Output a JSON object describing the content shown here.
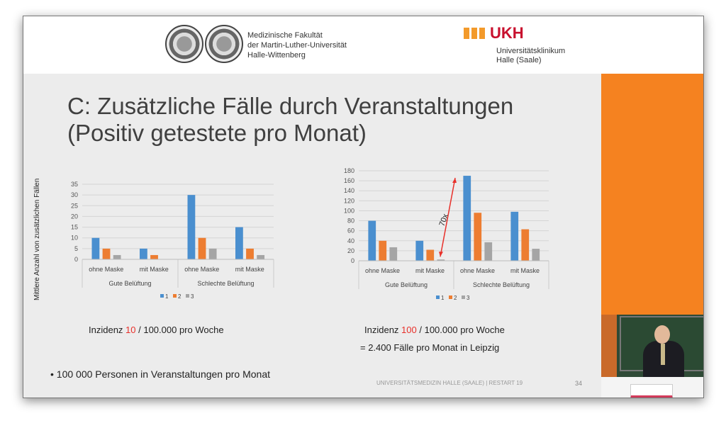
{
  "header": {
    "faculty_lines": [
      "Medizinische Fakultät",
      "der Martin-Luther-Universität",
      "Halle-Wittenberg"
    ],
    "ukh_logo": "UKH",
    "ukh_sub": [
      "Universitätsklinikum",
      "Halle (Saale)"
    ]
  },
  "slide": {
    "title_line1": "C: Zusätzliche Fälle durch Veranstaltungen",
    "title_line2": "(Positiv getestete pro Monat)",
    "y_axis_label": "Mittlere Anzahl von zusätzlichen Fällen",
    "left_caption": {
      "pre": "Inzidenz ",
      "value": "10",
      "post": " / 100.000 pro Woche"
    },
    "right_caption": {
      "pre": "Inzidenz ",
      "value": "100",
      "post": " / 100.000 pro Woche"
    },
    "right_caption2": "= 2.400 Fälle pro Monat in Leipzig",
    "bullet": "100 000 Personen in Veranstaltungen pro Monat",
    "footer": "UNIVERSITÄTSMEDIZIN HALLE (SAALE) | RESTART 19",
    "page_number": "34",
    "annotation": "70x"
  },
  "colors": {
    "s1": "#4a8fcf",
    "s2": "#ed7d31",
    "s3": "#a5a5a5",
    "accent": "#f58220",
    "highlight": "#e8302a"
  },
  "chart_data": [
    {
      "type": "bar",
      "ylim": [
        0,
        35
      ],
      "yticks": [
        0,
        5,
        10,
        15,
        20,
        25,
        30,
        35
      ],
      "categories": [
        "ohne Maske",
        "mit Maske",
        "ohne Maske",
        "mit Maske"
      ],
      "groups": [
        "Gute Belüftung",
        "Schlechte Belüftung"
      ],
      "legend": [
        "1",
        "2",
        "3"
      ],
      "legend_position": "bottom",
      "series": [
        {
          "name": "1",
          "values": [
            10,
            5,
            30,
            15
          ]
        },
        {
          "name": "2",
          "values": [
            5,
            2,
            10,
            5
          ]
        },
        {
          "name": "3",
          "values": [
            2,
            0,
            5,
            2
          ]
        }
      ]
    },
    {
      "type": "bar",
      "ylim": [
        0,
        180
      ],
      "yticks": [
        0,
        20,
        40,
        60,
        80,
        100,
        120,
        140,
        160,
        180
      ],
      "categories": [
        "ohne Maske",
        "mit Maske",
        "ohne Maske",
        "mit Maske"
      ],
      "groups": [
        "Gute Belüftung",
        "Schlechte Belüftung"
      ],
      "legend": [
        "1",
        "2",
        "3"
      ],
      "legend_position": "bottom",
      "series": [
        {
          "name": "1",
          "values": [
            80,
            40,
            170,
            98
          ]
        },
        {
          "name": "2",
          "values": [
            40,
            22,
            96,
            63
          ]
        },
        {
          "name": "3",
          "values": [
            27,
            2.5,
            37,
            24
          ]
        }
      ]
    }
  ]
}
